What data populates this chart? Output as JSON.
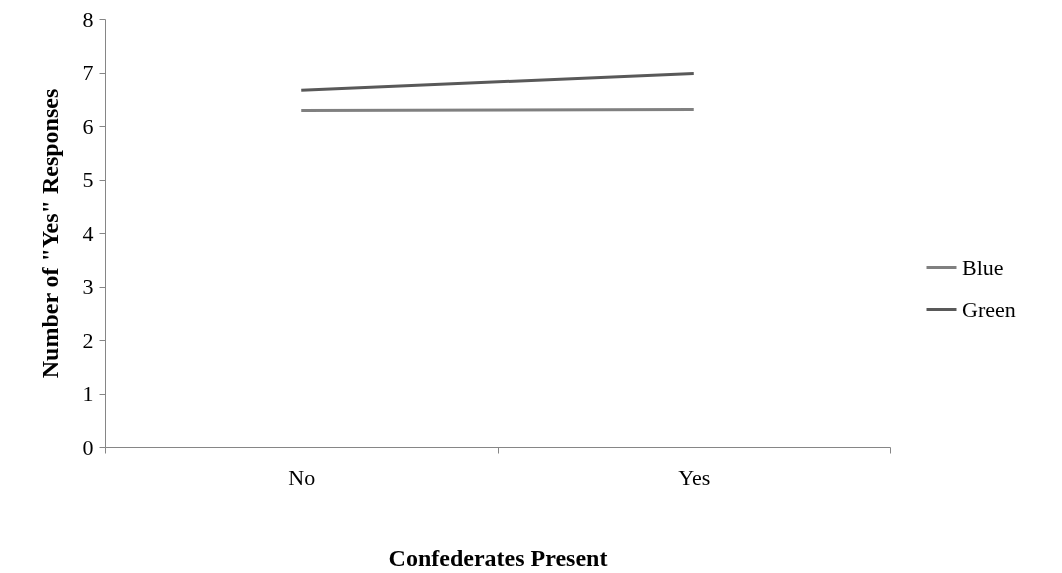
{
  "chart_data": {
    "type": "line",
    "xlabel": "Confederates Present",
    "ylabel": "Number of \"Yes\" Responses",
    "categories": [
      "No",
      "Yes"
    ],
    "series": [
      {
        "name": "Blue",
        "color": "#808080",
        "values": [
          6.29,
          6.31
        ]
      },
      {
        "name": "Green",
        "color": "#595959",
        "values": [
          6.67,
          6.98
        ]
      }
    ],
    "ylim": [
      0,
      8
    ],
    "yticks": [
      0,
      1,
      2,
      3,
      4,
      5,
      6,
      7,
      8
    ],
    "grid": false,
    "legend": "right",
    "marker": "none",
    "line_style": "solid"
  }
}
